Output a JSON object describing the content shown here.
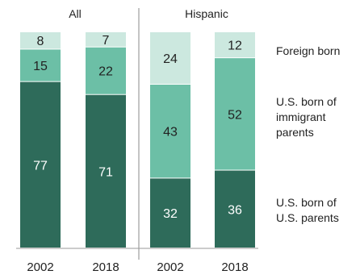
{
  "chart_data": {
    "type": "bar",
    "stacked": true,
    "panels": [
      {
        "title": "All",
        "categories": [
          "2002",
          "2018"
        ],
        "series": [
          {
            "name": "U.S. born of U.S. parents",
            "values": [
              77,
              71
            ]
          },
          {
            "name": "U.S. born of immigrant parents",
            "values": [
              15,
              22
            ]
          },
          {
            "name": "Foreign born",
            "values": [
              8,
              7
            ]
          }
        ]
      },
      {
        "title": "Hispanic",
        "categories": [
          "2002",
          "2018"
        ],
        "series": [
          {
            "name": "U.S. born of U.S. parents",
            "values": [
              32,
              36
            ]
          },
          {
            "name": "U.S. born of immigrant parents",
            "values": [
              43,
              52
            ]
          },
          {
            "name": "Foreign born",
            "values": [
              24,
              12
            ]
          }
        ]
      }
    ],
    "legend": [
      {
        "series": "Foreign born",
        "lines": [
          "Foreign born"
        ]
      },
      {
        "series": "U.S. born of immigrant parents",
        "lines": [
          "U.S. born of",
          "immigrant",
          "parents"
        ]
      },
      {
        "series": "U.S. born of U.S. parents",
        "lines": [
          "U.S. born of",
          "U.S. parents"
        ]
      }
    ],
    "legend_position": "right",
    "colors": {
      "U.S. born of U.S. parents": "#2e6b5a",
      "U.S. born of immigrant parents": "#6cbfa6",
      "Foreign born": "#cce8df"
    },
    "label_colors": {
      "U.S. born of U.S. parents": "#ffffff",
      "U.S. born of immigrant parents": "#222222",
      "Foreign born": "#222222"
    },
    "ylim": [
      0,
      100
    ]
  }
}
